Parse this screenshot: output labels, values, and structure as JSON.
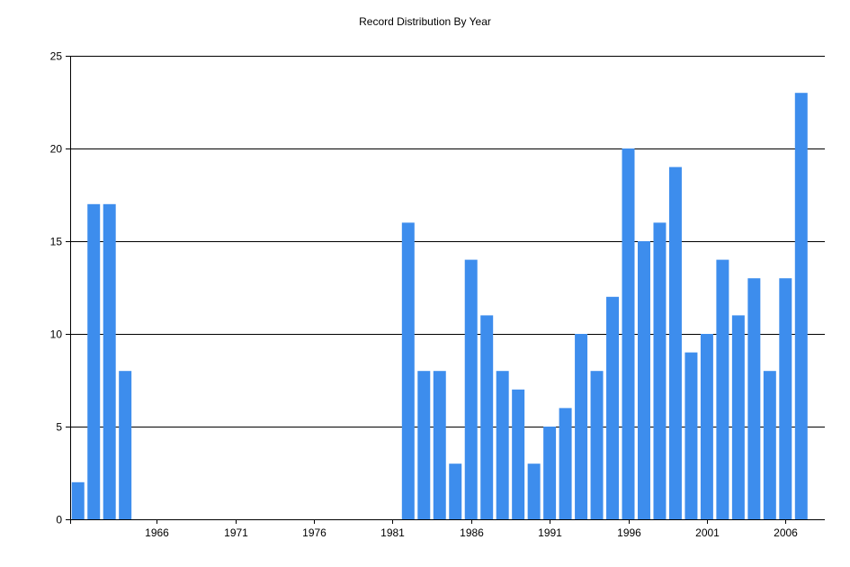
{
  "chart_data": {
    "type": "bar",
    "title": "Record Distribution By Year",
    "xlabel": "",
    "ylabel": "",
    "x_ticks": [
      1966,
      1971,
      1976,
      1981,
      1986,
      1991,
      1996,
      2001,
      2006
    ],
    "y_ticks": [
      0,
      5,
      10,
      15,
      20,
      25
    ],
    "ylim": [
      0,
      25
    ],
    "xlim": [
      1960.5,
      2008.5
    ],
    "grid": "horizontal",
    "bar_color": "#3d8ded",
    "bars": [
      {
        "x": 1961,
        "value": 2
      },
      {
        "x": 1962,
        "value": 17
      },
      {
        "x": 1963,
        "value": 17
      },
      {
        "x": 1964,
        "value": 8
      },
      {
        "x": 1982,
        "value": 16
      },
      {
        "x": 1983,
        "value": 8
      },
      {
        "x": 1984,
        "value": 8
      },
      {
        "x": 1985,
        "value": 3
      },
      {
        "x": 1986,
        "value": 14
      },
      {
        "x": 1987,
        "value": 11
      },
      {
        "x": 1988,
        "value": 8
      },
      {
        "x": 1989,
        "value": 7
      },
      {
        "x": 1990,
        "value": 3
      },
      {
        "x": 1991,
        "value": 5
      },
      {
        "x": 1992,
        "value": 6
      },
      {
        "x": 1993,
        "value": 10
      },
      {
        "x": 1994,
        "value": 8
      },
      {
        "x": 1995,
        "value": 12
      },
      {
        "x": 1996,
        "value": 20
      },
      {
        "x": 1997,
        "value": 15
      },
      {
        "x": 1998,
        "value": 16
      },
      {
        "x": 1999,
        "value": 19
      },
      {
        "x": 2000,
        "value": 9
      },
      {
        "x": 2001,
        "value": 10
      },
      {
        "x": 2002,
        "value": 14
      },
      {
        "x": 2003,
        "value": 11
      },
      {
        "x": 2004,
        "value": 13
      },
      {
        "x": 2005,
        "value": 8
      },
      {
        "x": 2006,
        "value": 13
      },
      {
        "x": 2007,
        "value": 23
      }
    ]
  }
}
